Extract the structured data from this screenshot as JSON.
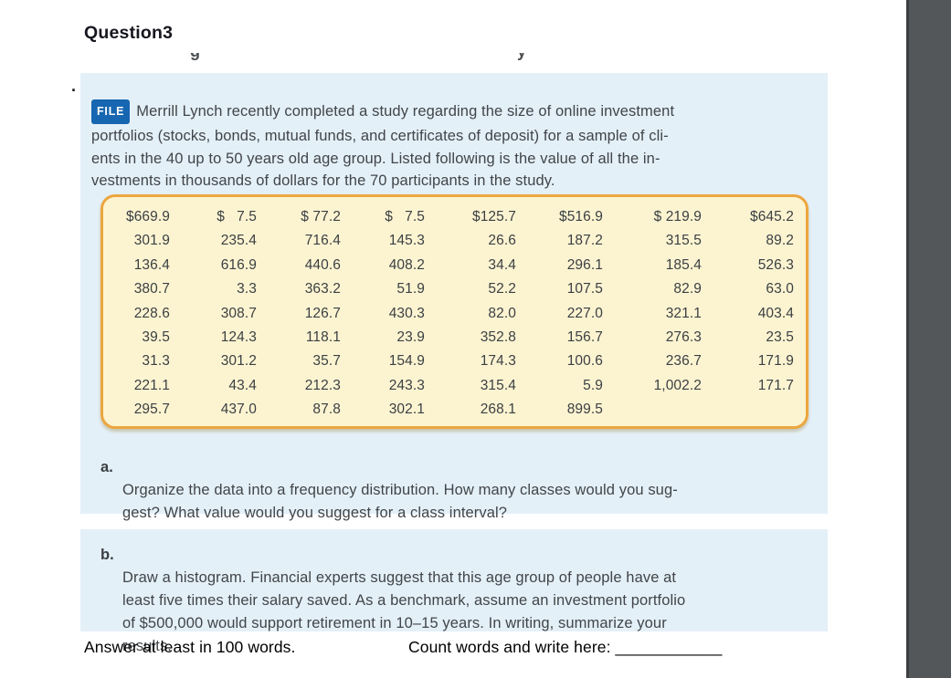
{
  "page": {
    "title": "Question3",
    "bullet_marker": ".",
    "clipped_fragments": [
      "g",
      "y"
    ]
  },
  "intro": {
    "file_badge": "FILE",
    "lines": [
      "Merrill Lynch recently completed a study regarding the size of online investment",
      "portfolios (stocks, bonds, mutual funds, and certificates of deposit) for a sample of cli-",
      "ents in the 40 up to 50 years old age group. Listed following is the value of all the in-",
      "vestments in thousands of dollars for the 70 participants in the study."
    ]
  },
  "data_table": {
    "rows": [
      [
        "$669.9",
        "$   7.5",
        "$ 77.2",
        "$   7.5",
        "$125.7",
        "$516.9",
        "$ 219.9",
        "$645.2"
      ],
      [
        "301.9",
        "235.4",
        "716.4",
        "145.3",
        "26.6",
        "187.2",
        "315.5",
        "89.2"
      ],
      [
        "136.4",
        "616.9",
        "440.6",
        "408.2",
        "34.4",
        "296.1",
        "185.4",
        "526.3"
      ],
      [
        "380.7",
        "3.3",
        "363.2",
        "51.9",
        "52.2",
        "107.5",
        "82.9",
        "63.0"
      ],
      [
        "228.6",
        "308.7",
        "126.7",
        "430.3",
        "82.0",
        "227.0",
        "321.1",
        "403.4"
      ],
      [
        "39.5",
        "124.3",
        "118.1",
        "23.9",
        "352.8",
        "156.7",
        "276.3",
        "23.5"
      ],
      [
        "31.3",
        "301.2",
        "35.7",
        "154.9",
        "174.3",
        "100.6",
        "236.7",
        "171.9"
      ],
      [
        "221.1",
        "43.4",
        "212.3",
        "243.3",
        "315.4",
        "5.9",
        "1,002.2",
        "171.7"
      ],
      [
        "295.7",
        "437.0",
        "87.8",
        "302.1",
        "268.1",
        "899.5",
        "",
        ""
      ]
    ]
  },
  "parts": {
    "a": {
      "label": "a.",
      "lines": [
        "Organize the data into a frequency distribution. How many classes would you sug-",
        "gest? What value would you suggest for a class interval?"
      ]
    },
    "b": {
      "label": "b.",
      "lines": [
        "Draw a histogram. Financial experts suggest that this age group of people have at",
        "least five times their salary saved. As a benchmark, assume an investment portfolio",
        "of $500,000 would support retirement in 10–15 years. In writing, summarize your",
        "results."
      ]
    }
  },
  "footer": {
    "answer_note": "Answer at least in 100 words.",
    "count_prompt": "Count words and write here: ",
    "blank": "____________"
  },
  "colors": {
    "panel_blue": "#e4f0f8",
    "table_fill": "#fcf4d1",
    "table_border": "#eca63f",
    "badge_blue": "#1766b1",
    "body_text": "#414549",
    "sidebar_gray": "#54575a"
  }
}
